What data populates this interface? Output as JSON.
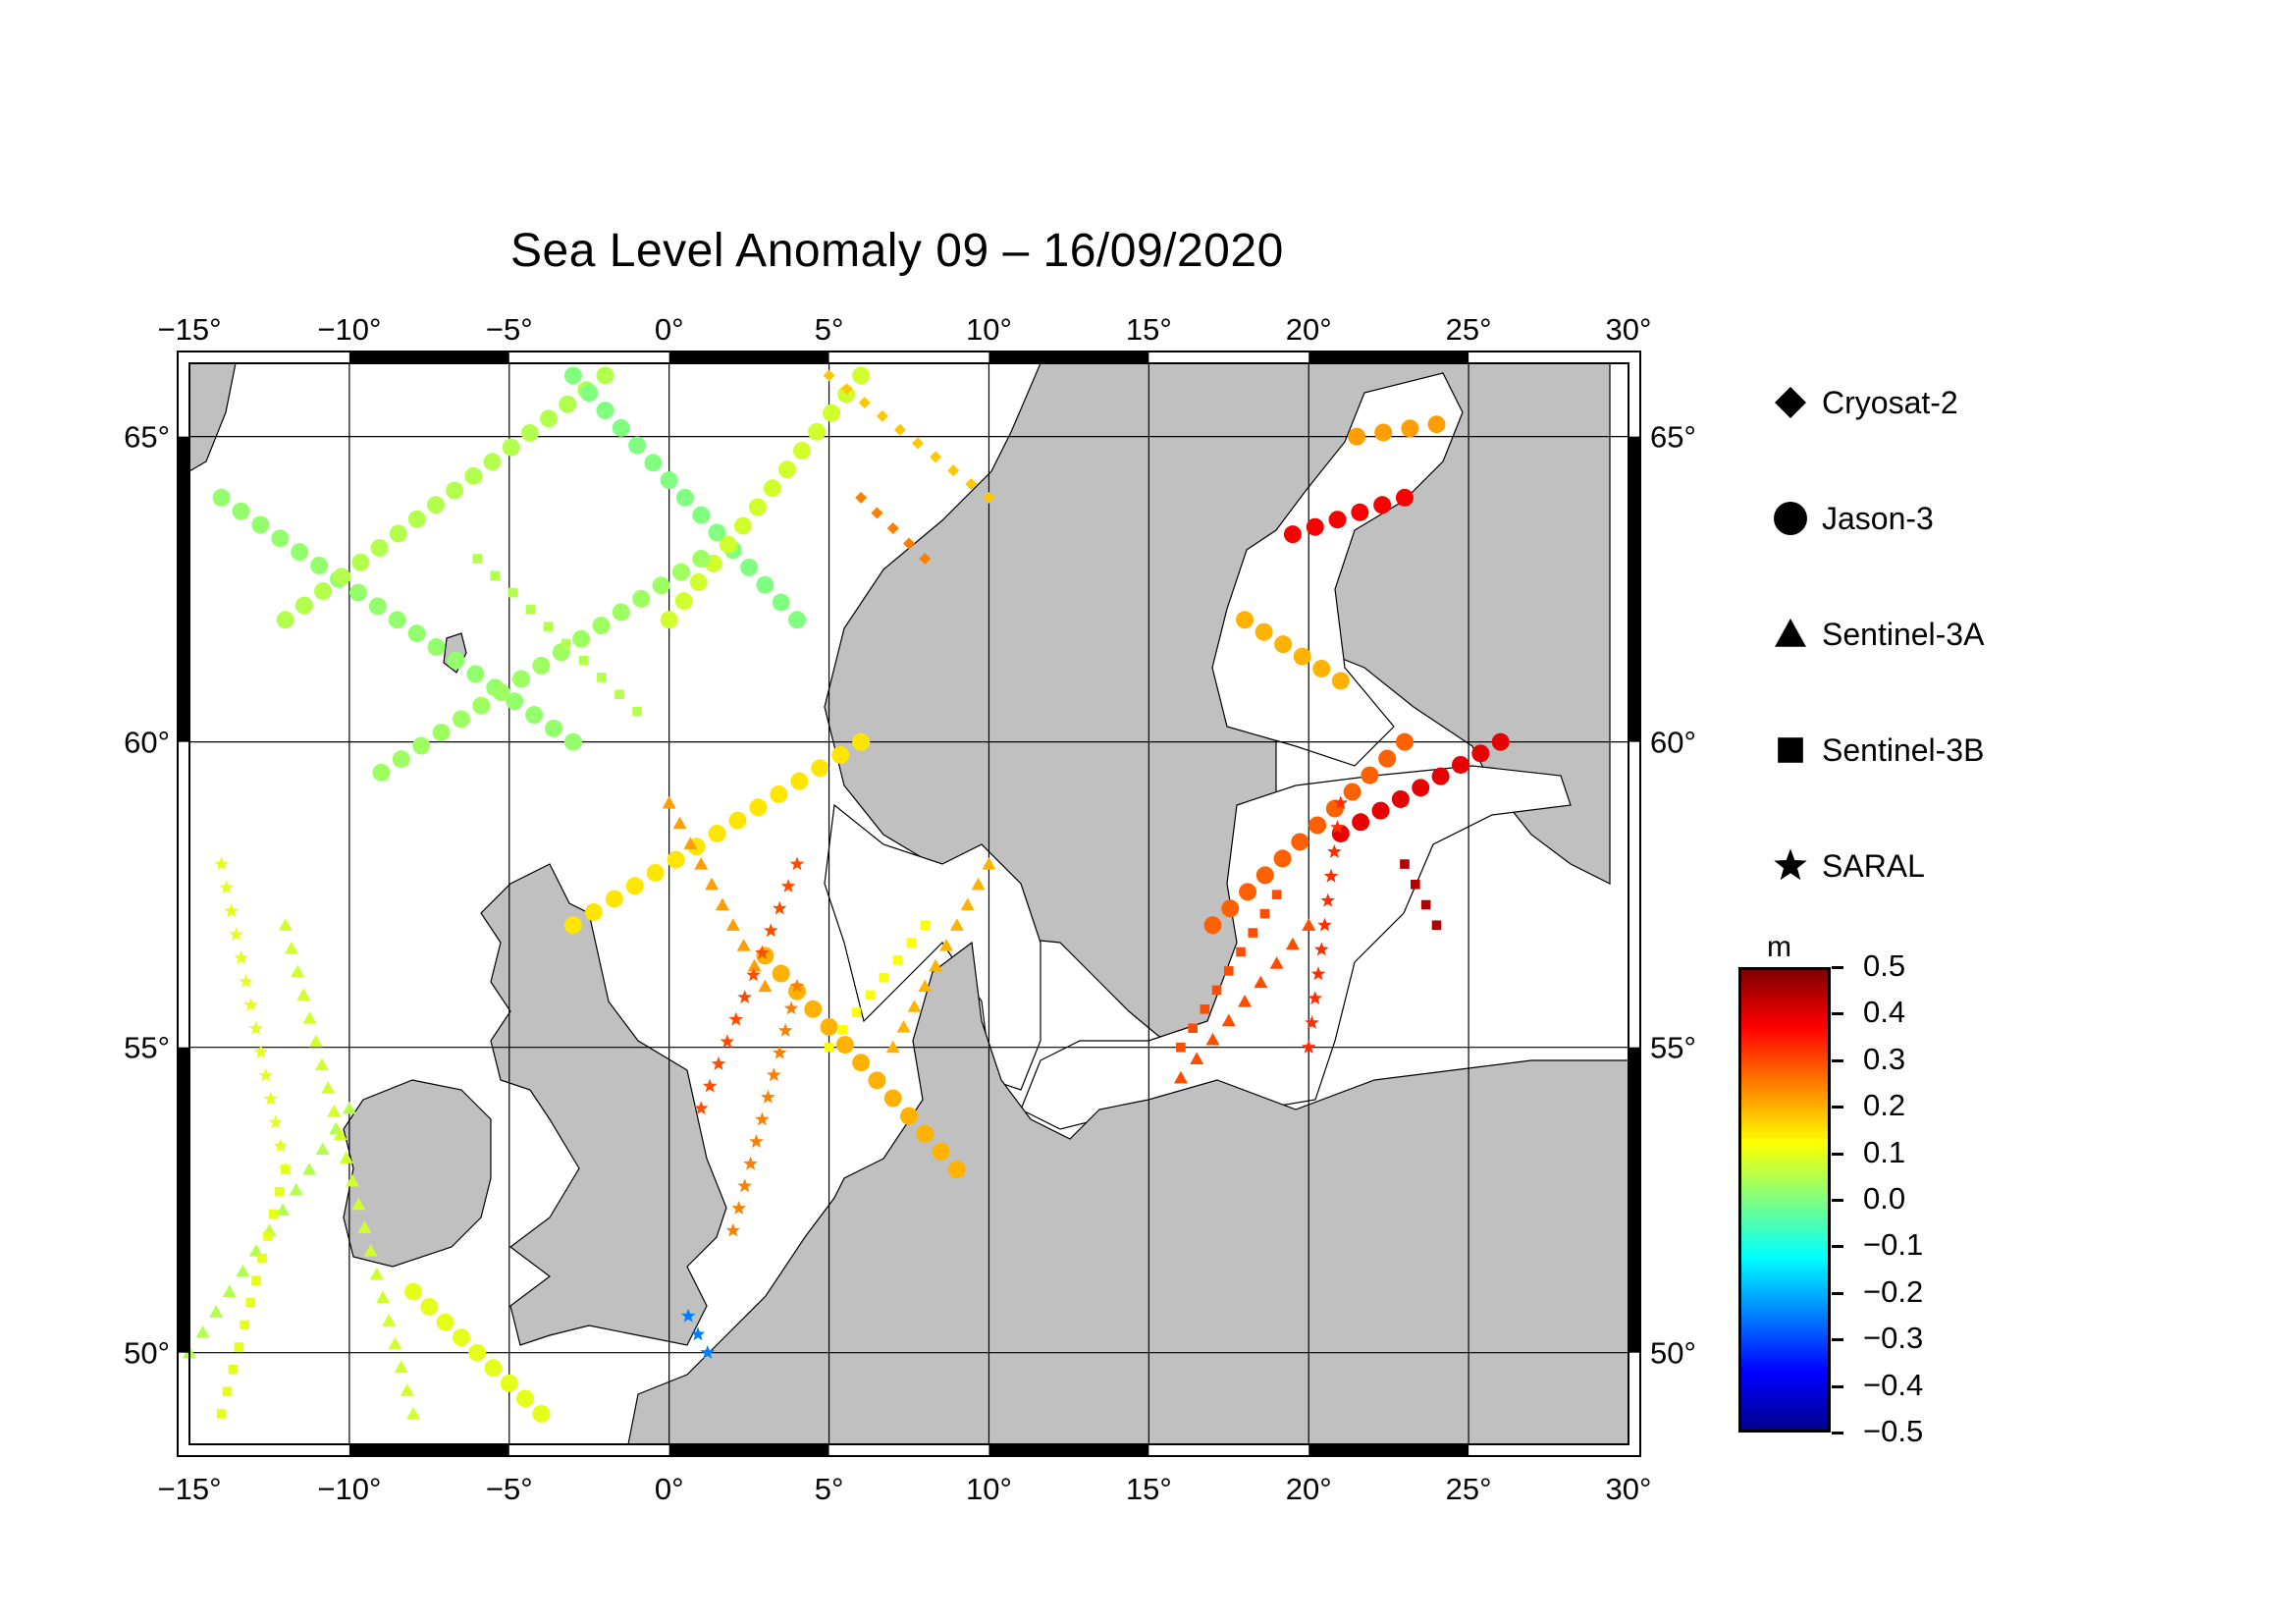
{
  "title": "Sea Level Anomaly 09 – 16/09/2020",
  "map": {
    "lon_range": [
      -15,
      30
    ],
    "lat_range": [
      48.5,
      66.2
    ],
    "lon_ticks": [
      "−15°",
      "−10°",
      "−5°",
      "0°",
      "5°",
      "10°",
      "15°",
      "20°",
      "25°",
      "30°"
    ],
    "lat_ticks": [
      "50°",
      "55°",
      "60°",
      "65°"
    ],
    "land_color": "#c0c0c0",
    "sea_color": "#ffffff"
  },
  "legend": [
    {
      "name": "Cryosat-2",
      "icon": "diamond-icon"
    },
    {
      "name": "Jason-3",
      "icon": "circle-icon"
    },
    {
      "name": "Sentinel-3A",
      "icon": "triangle-icon"
    },
    {
      "name": "Sentinel-3B",
      "icon": "square-icon"
    },
    {
      "name": "SARAL",
      "icon": "star-icon"
    }
  ],
  "colorbar": {
    "unit": "m",
    "min": -0.5,
    "max": 0.5,
    "labels": [
      "0.5",
      "0.4",
      "0.3",
      "0.2",
      "0.1",
      "0.0",
      "−0.1",
      "−0.2",
      "−0.3",
      "−0.4",
      "−0.5"
    ],
    "palette": [
      "#00008f",
      "#0000ff",
      "#0080ff",
      "#00ffff",
      "#80ff80",
      "#ffff00",
      "#ff8000",
      "#ff0000",
      "#800000"
    ]
  },
  "chart_data": {
    "type": "scatter",
    "tracks": [
      {
        "mission": "Jason-3",
        "from": [
          -14,
          64
        ],
        "to": [
          -3,
          60
        ],
        "sla": 0.02
      },
      {
        "mission": "Jason-3",
        "from": [
          -12,
          62
        ],
        "to": [
          -2,
          66
        ],
        "sla": 0.05
      },
      {
        "mission": "Jason-3",
        "from": [
          -3,
          66
        ],
        "to": [
          4,
          62
        ],
        "sla": 0.0
      },
      {
        "mission": "Jason-3",
        "from": [
          0,
          62
        ],
        "to": [
          6,
          66
        ],
        "sla": 0.08
      },
      {
        "mission": "Jason-3",
        "from": [
          -9,
          59.5
        ],
        "to": [
          1,
          63
        ],
        "sla": 0.03
      },
      {
        "mission": "Jason-3",
        "from": [
          -3,
          57
        ],
        "to": [
          6,
          60
        ],
        "sla": 0.15
      },
      {
        "mission": "Jason-3",
        "from": [
          3,
          56.5
        ],
        "to": [
          9,
          53
        ],
        "sla": 0.2
      },
      {
        "mission": "Jason-3",
        "from": [
          -8,
          51
        ],
        "to": [
          -4,
          49
        ],
        "sla": 0.1
      },
      {
        "mission": "Jason-3",
        "from": [
          17,
          57
        ],
        "to": [
          23,
          60
        ],
        "sla": 0.28
      },
      {
        "mission": "Jason-3",
        "from": [
          21,
          58.5
        ],
        "to": [
          26,
          60
        ],
        "sla": 0.4
      },
      {
        "mission": "Jason-3",
        "from": [
          19.5,
          63.4
        ],
        "to": [
          23,
          64
        ],
        "sla": 0.38
      },
      {
        "mission": "Jason-3",
        "from": [
          18,
          62
        ],
        "to": [
          21,
          61
        ],
        "sla": 0.2
      },
      {
        "mission": "Jason-3",
        "from": [
          21.5,
          65
        ],
        "to": [
          24,
          65.2
        ],
        "sla": 0.22
      },
      {
        "mission": "Sentinel-3A",
        "from": [
          -15,
          50
        ],
        "to": [
          -10,
          54
        ],
        "sla": 0.05
      },
      {
        "mission": "Sentinel-3A",
        "from": [
          -12,
          57
        ],
        "to": [
          -8,
          49
        ],
        "sla": 0.08
      },
      {
        "mission": "Sentinel-3A",
        "from": [
          0,
          59
        ],
        "to": [
          3,
          56
        ],
        "sla": 0.22
      },
      {
        "mission": "Sentinel-3A",
        "from": [
          7,
          55
        ],
        "to": [
          10,
          58
        ],
        "sla": 0.2
      },
      {
        "mission": "Sentinel-3A",
        "from": [
          16,
          54.5
        ],
        "to": [
          20,
          57
        ],
        "sla": 0.3
      },
      {
        "mission": "Sentinel-3B",
        "from": [
          -14,
          49
        ],
        "to": [
          -12,
          53
        ],
        "sla": 0.1
      },
      {
        "mission": "Sentinel-3B",
        "from": [
          -6,
          63
        ],
        "to": [
          -1,
          60.5
        ],
        "sla": 0.05
      },
      {
        "mission": "Sentinel-3B",
        "from": [
          5,
          55
        ],
        "to": [
          8,
          57
        ],
        "sla": 0.12
      },
      {
        "mission": "Sentinel-3B",
        "from": [
          23,
          58
        ],
        "to": [
          24,
          57
        ],
        "sla": 0.45
      },
      {
        "mission": "Sentinel-3B",
        "from": [
          16,
          55
        ],
        "to": [
          19,
          57.5
        ],
        "sla": 0.3
      },
      {
        "mission": "SARAL",
        "from": [
          1,
          54
        ],
        "to": [
          4,
          58
        ],
        "sla": 0.3
      },
      {
        "mission": "SARAL",
        "from": [
          2,
          52
        ],
        "to": [
          4,
          56
        ],
        "sla": 0.25
      },
      {
        "mission": "SARAL",
        "from": [
          20,
          55
        ],
        "to": [
          21,
          59
        ],
        "sla": 0.33
      },
      {
        "mission": "SARAL",
        "from": [
          -14,
          58
        ],
        "to": [
          -12,
          53
        ],
        "sla": 0.1
      },
      {
        "mission": "SARAL",
        "from": [
          0.6,
          50.6
        ],
        "to": [
          1.2,
          50.0
        ],
        "sla": -0.25
      },
      {
        "mission": "Cryosat-2",
        "from": [
          5,
          66
        ],
        "to": [
          10,
          64
        ],
        "sla": 0.18
      },
      {
        "mission": "Cryosat-2",
        "from": [
          6,
          64
        ],
        "to": [
          8,
          63
        ],
        "sla": 0.25
      }
    ]
  }
}
